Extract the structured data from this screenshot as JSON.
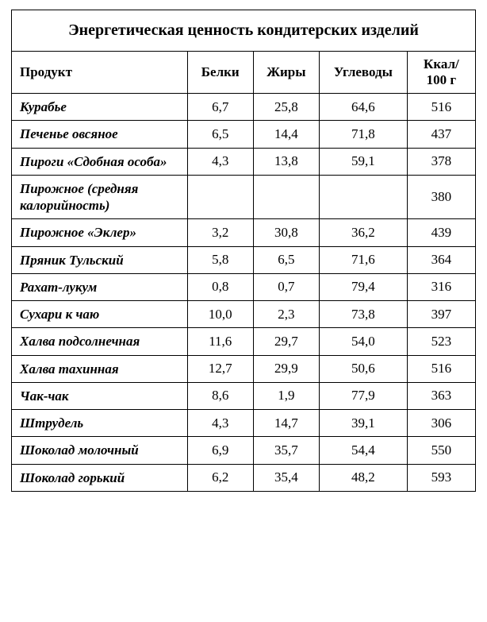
{
  "title": "Энергетическая ценность кондитерских изделий",
  "columns": {
    "product": "Продукт",
    "proteins": "Белки",
    "fats": "Жиры",
    "carbs": "Углеводы",
    "kcal": "Ккал/ 100 г"
  },
  "rows": [
    {
      "product": "Курабье",
      "proteins": "6,7",
      "fats": "25,8",
      "carbs": "64,6",
      "kcal": "516"
    },
    {
      "product": "Печенье овсяное",
      "proteins": "6,5",
      "fats": "14,4",
      "carbs": "71,8",
      "kcal": "437"
    },
    {
      "product": "Пироги «Сдобная особа»",
      "proteins": "4,3",
      "fats": "13,8",
      "carbs": "59,1",
      "kcal": "378"
    },
    {
      "product": "Пирожное (средняя калорийность)",
      "proteins": "",
      "fats": "",
      "carbs": "",
      "kcal": "380"
    },
    {
      "product": "Пирожное «Эклер»",
      "proteins": "3,2",
      "fats": "30,8",
      "carbs": "36,2",
      "kcal": "439"
    },
    {
      "product": "Пряник Тульский",
      "proteins": "5,8",
      "fats": "6,5",
      "carbs": "71,6",
      "kcal": "364"
    },
    {
      "product": "Рахат-лукум",
      "proteins": "0,8",
      "fats": "0,7",
      "carbs": "79,4",
      "kcal": "316"
    },
    {
      "product": "Сухари к чаю",
      "proteins": "10,0",
      "fats": "2,3",
      "carbs": "73,8",
      "kcal": "397"
    },
    {
      "product": "Халва подсолнечная",
      "proteins": "11,6",
      "fats": "29,7",
      "carbs": "54,0",
      "kcal": "523"
    },
    {
      "product": "Халва тахинная",
      "proteins": "12,7",
      "fats": "29,9",
      "carbs": "50,6",
      "kcal": "516"
    },
    {
      "product": "Чак-чак",
      "proteins": "8,6",
      "fats": "1,9",
      "carbs": "77,9",
      "kcal": "363"
    },
    {
      "product": "Штрудель",
      "proteins": "4,3",
      "fats": "14,7",
      "carbs": "39,1",
      "kcal": "306"
    },
    {
      "product": "Шоколад молочный",
      "proteins": "6,9",
      "fats": "35,7",
      "carbs": "54,4",
      "kcal": "550"
    },
    {
      "product": "Шоколад горький",
      "proteins": "6,2",
      "fats": "35,4",
      "carbs": "48,2",
      "kcal": "593"
    }
  ],
  "style": {
    "border_color": "#000000",
    "background_color": "#ffffff",
    "title_fontsize": 20,
    "header_fontsize": 17,
    "cell_fontsize": 17,
    "font_family": "Times New Roman"
  }
}
